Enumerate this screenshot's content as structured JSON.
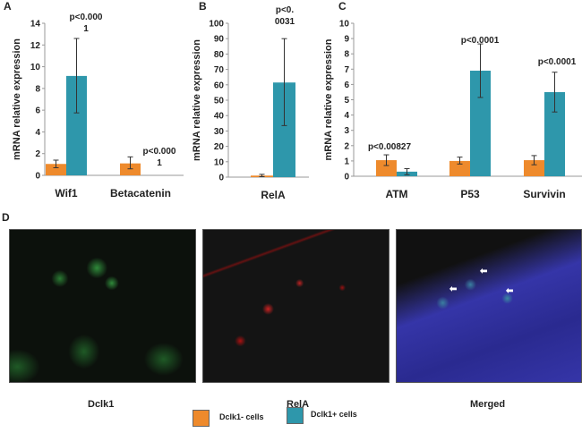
{
  "colors": {
    "dclk1_neg": "#EE8A2C",
    "dclk1_pos": "#2E97AB",
    "error_bar": "#333333"
  },
  "legend": [
    {
      "label": "Dclk1- cells",
      "color": "#EE8A2C"
    },
    {
      "label": "Dclk1+ cells",
      "color": "#2E97AB"
    }
  ],
  "chart_data": [
    {
      "panel": "A",
      "type": "bar",
      "ylabel": "mRNA relative expression",
      "ylim": [
        0,
        14
      ],
      "yticks": [
        0,
        2,
        4,
        6,
        8,
        10,
        12,
        14
      ],
      "categories": [
        "Wif1",
        "Betacatenin"
      ],
      "series": [
        {
          "name": "Dclk1- cells",
          "values": [
            1.05,
            1.1
          ],
          "err_low": [
            0.7,
            0.6
          ],
          "err_high": [
            1.4,
            1.7
          ]
        },
        {
          "name": "Dclk1+ cells",
          "values": [
            9.15,
            0
          ],
          "err_low": [
            5.75,
            null
          ],
          "err_high": [
            12.6,
            null
          ]
        }
      ],
      "annotations": [
        [
          "p<0.000",
          "1"
        ],
        [
          "p<0.000",
          "1"
        ]
      ]
    },
    {
      "panel": "B",
      "type": "bar",
      "ylabel": "mRNA relative expression",
      "ylim": [
        0,
        100
      ],
      "yticks": [
        0,
        10,
        20,
        30,
        40,
        50,
        60,
        70,
        80,
        90,
        100
      ],
      "categories": [
        "RelA"
      ],
      "series": [
        {
          "name": "Dclk1- cells",
          "values": [
            1
          ],
          "err_low": [
            0.3
          ],
          "err_high": [
            1.8
          ]
        },
        {
          "name": "Dclk1+ cells",
          "values": [
            61.5
          ],
          "err_low": [
            33.5
          ],
          "err_high": [
            90
          ]
        }
      ],
      "annotations": [
        [
          "p<0.",
          "0031"
        ]
      ]
    },
    {
      "panel": "C",
      "type": "bar",
      "ylabel": "mRNA relative expression",
      "ylim": [
        0,
        10
      ],
      "yticks": [
        0,
        1,
        2,
        3,
        4,
        5,
        6,
        7,
        8,
        9,
        10
      ],
      "categories": [
        "ATM",
        "P53",
        "Survivin"
      ],
      "series": [
        {
          "name": "Dclk1- cells",
          "values": [
            1.05,
            1.0,
            1.05
          ],
          "err_low": [
            0.7,
            0.8,
            0.75
          ],
          "err_high": [
            1.4,
            1.25,
            1.35
          ]
        },
        {
          "name": "Dclk1+ cells",
          "values": [
            0.3,
            6.9,
            5.5
          ],
          "err_low": [
            0.1,
            5.15,
            4.2
          ],
          "err_high": [
            0.5,
            8.65,
            6.8
          ]
        }
      ],
      "annotations": [
        [
          "p<0.00827"
        ],
        [
          "p<0.0001"
        ],
        [
          "p<0.0001"
        ]
      ]
    }
  ],
  "panel_d": {
    "letter": "D",
    "images": [
      {
        "label": "Dclk1"
      },
      {
        "label": "RelA"
      },
      {
        "label": "Merged"
      }
    ],
    "arrow_glyph": "⬅"
  }
}
